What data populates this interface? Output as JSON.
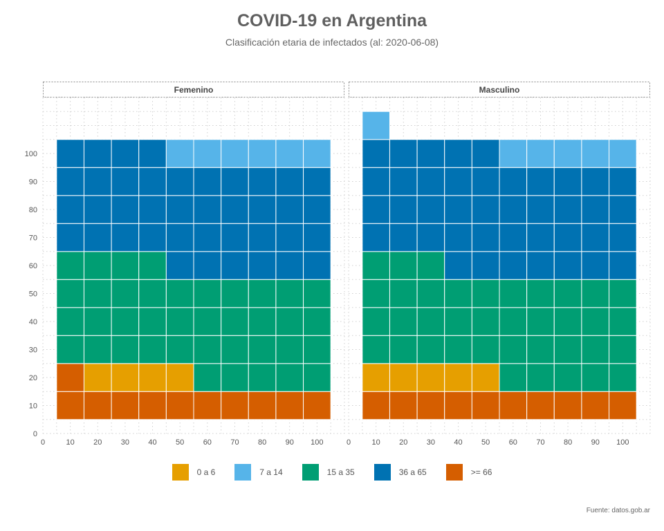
{
  "header": {
    "title": "COVID-19 en Argentina",
    "subtitle": "Clasificación etaria de infectados (al: 2020-06-08)"
  },
  "caption": "Fuente: datos.gob.ar",
  "legend": [
    {
      "label": "0 a 6",
      "color": "#E69F00"
    },
    {
      "label": "7 a 14",
      "color": "#56B4E9"
    },
    {
      "label": "15 a 35",
      "color": "#009E73"
    },
    {
      "label": "36 a 65",
      "color": "#0072B2"
    },
    {
      "label": ">= 66",
      "color": "#D55E00"
    }
  ],
  "chart_data": {
    "type": "waffle",
    "columns_per_row": 10,
    "x_ticks": [
      0,
      10,
      20,
      30,
      40,
      50,
      60,
      70,
      80,
      90,
      100
    ],
    "y_ticks": [
      0,
      10,
      20,
      30,
      40,
      50,
      60,
      70,
      80,
      90,
      100
    ],
    "xlim": [
      0,
      110
    ],
    "ylim": [
      0,
      120
    ],
    "grid": true,
    "legend_position": "bottom",
    "categories": [
      "0 a 6",
      "7 a 14",
      "15 a 35",
      "36 a 65",
      ">= 66"
    ],
    "facets": [
      {
        "name": "Femenino",
        "counts": {
          ">= 66": 11,
          "0 a 6": 4,
          "15 a 35": 39,
          "36 a 65": 40,
          "7 a 14": 6
        }
      },
      {
        "name": "Masculino",
        "counts": {
          ">= 66": 10,
          "0 a 6": 5,
          "15 a 35": 38,
          "36 a 65": 42,
          "7 a 14": 6
        }
      }
    ],
    "fill_order": [
      ">= 66",
      "0 a 6",
      "15 a 35",
      "36 a 65",
      "7 a 14"
    ]
  }
}
